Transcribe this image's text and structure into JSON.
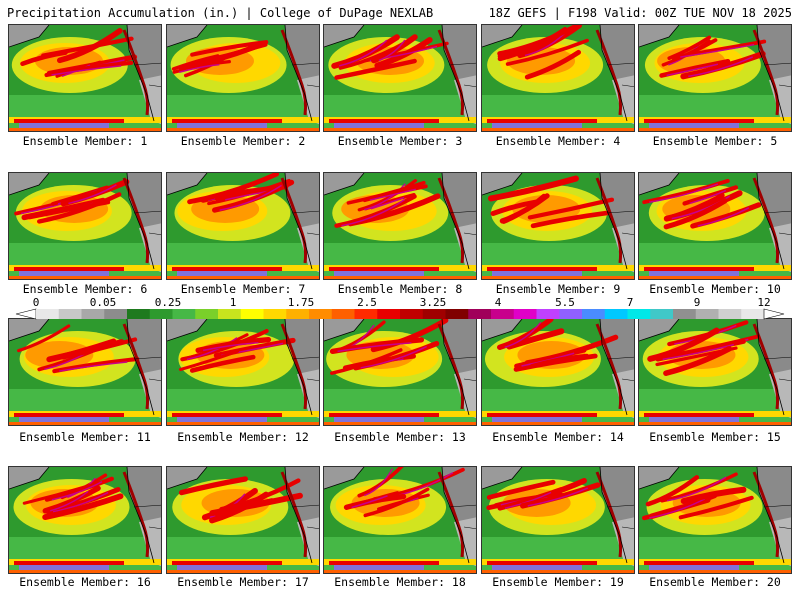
{
  "header": {
    "left_title": "Precipitation Accumulation (in.) | College of DuPage NEXLAB",
    "right_title": "18Z GEFS | F198 Valid: 00Z TUE NOV 18 2025"
  },
  "panels": [
    {
      "label": "Ensemble Member: 1"
    },
    {
      "label": "Ensemble Member: 2"
    },
    {
      "label": "Ensemble Member: 3"
    },
    {
      "label": "Ensemble Member: 4"
    },
    {
      "label": "Ensemble Member: 5"
    },
    {
      "label": "Ensemble Member: 6"
    },
    {
      "label": "Ensemble Member: 7"
    },
    {
      "label": "Ensemble Member: 8"
    },
    {
      "label": "Ensemble Member: 9"
    },
    {
      "label": "Ensemble Member: 10"
    },
    {
      "label": "Ensemble Member: 11"
    },
    {
      "label": "Ensemble Member: 12"
    },
    {
      "label": "Ensemble Member: 13"
    },
    {
      "label": "Ensemble Member: 14"
    },
    {
      "label": "Ensemble Member: 15"
    },
    {
      "label": "Ensemble Member: 16"
    },
    {
      "label": "Ensemble Member: 17"
    },
    {
      "label": "Ensemble Member: 18"
    },
    {
      "label": "Ensemble Member: 19"
    },
    {
      "label": "Ensemble Member: 20"
    }
  ],
  "colorbar": {
    "tick_labels": [
      "0",
      "0.05",
      "0.25",
      "1",
      "1.75",
      "2.5",
      "3.25",
      "4",
      "5.5",
      "7",
      "9",
      "12"
    ],
    "colors": [
      "#e8e8e8",
      "#c8c8c8",
      "#a8a8a8",
      "#8c8c8c",
      "#1e7a1e",
      "#2e9a2e",
      "#46b846",
      "#7ad02a",
      "#c8e41e",
      "#ffff00",
      "#ffd800",
      "#ffb000",
      "#ff8c00",
      "#ff6000",
      "#ff2a00",
      "#e80000",
      "#c00000",
      "#a00000",
      "#800000",
      "#a0005a",
      "#c8008c",
      "#e000c8",
      "#c040ff",
      "#9060ff",
      "#4a8cff",
      "#00c8ff",
      "#00e8e8",
      "#40c8c8",
      "#909090",
      "#b0b0b0",
      "#d0d0d0",
      "#e8e8e8"
    ]
  }
}
